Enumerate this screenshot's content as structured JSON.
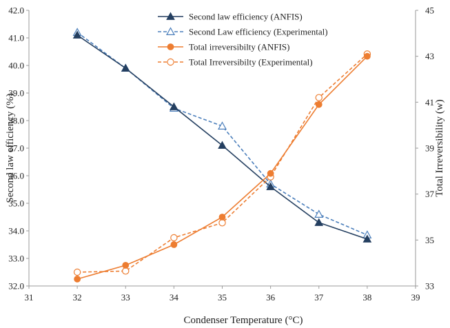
{
  "chart_data": {
    "type": "line",
    "xlabel": "Condenser Temperature (°C)",
    "ylabel_left": "Second law efficiency (%)",
    "ylabel_right": "Total Irreversibility (w)",
    "x_ticks": [
      "31",
      "32",
      "33",
      "34",
      "35",
      "36",
      "37",
      "38",
      "39"
    ],
    "y_left_ticks": [
      "32.0",
      "33.0",
      "34.0",
      "35.0",
      "36.0",
      "37.0",
      "38.0",
      "39.0",
      "40.0",
      "41.0",
      "42.0"
    ],
    "y_right_ticks": [
      "33",
      "35",
      "37",
      "39",
      "41",
      "43",
      "45"
    ],
    "xlim": [
      31,
      39
    ],
    "ylim_left": [
      32,
      42
    ],
    "ylim_right": [
      33,
      45
    ],
    "grid": false,
    "legend_position": "top-center",
    "x": [
      32,
      33,
      34,
      35,
      36,
      37,
      38
    ],
    "series": [
      {
        "name": "Second law efficiency (ANFIS)",
        "axis": "left",
        "values": [
          41.1,
          39.9,
          38.5,
          37.1,
          35.6,
          34.3,
          33.7
        ],
        "color": "#243f60",
        "dash": "solid",
        "marker": "triangle-filled"
      },
      {
        "name": "Second Law efficiency (Experimental)",
        "axis": "left",
        "values": [
          41.2,
          39.9,
          38.45,
          37.8,
          35.7,
          34.6,
          33.85
        ],
        "color": "#4a7ebb",
        "dash": "dashed",
        "marker": "triangle-open"
      },
      {
        "name": "Total irreversibilty (ANFIS)",
        "axis": "right",
        "values": [
          33.3,
          33.9,
          34.8,
          36.0,
          37.9,
          40.9,
          43.0
        ],
        "color": "#ed7d31",
        "dash": "solid",
        "marker": "circle-filled"
      },
      {
        "name": "Total Irreversibilty (Experimental)",
        "axis": "right",
        "values": [
          33.6,
          33.65,
          35.1,
          35.75,
          37.75,
          41.2,
          43.1
        ],
        "color": "#ed7d31",
        "dash": "dashed",
        "marker": "circle-open"
      }
    ]
  }
}
